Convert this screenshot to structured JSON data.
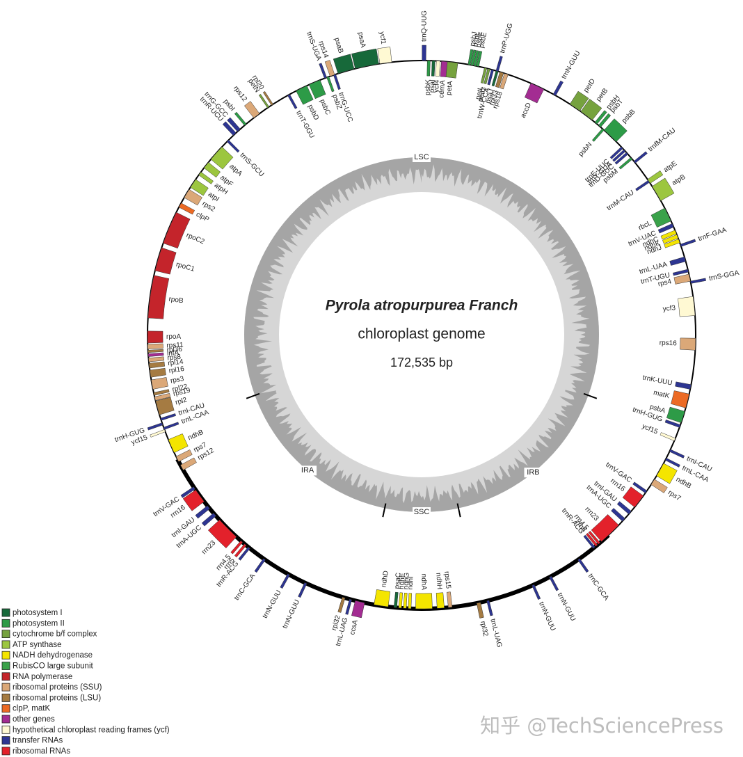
{
  "title": "Pyrola atropurpurea Franch",
  "subtitle": "chloroplast genome",
  "size": "172,535 bp",
  "regions": [
    "LSC",
    "IRB",
    "SSC",
    "IRA"
  ],
  "watermark": "知乎 @TechSciencePress",
  "legend": [
    {
      "label": "photosystem I",
      "color": "#17693a"
    },
    {
      "label": "photosystem II",
      "color": "#2d9b47"
    },
    {
      "label": "cytochrome b/f complex",
      "color": "#76a23e"
    },
    {
      "label": "ATP synthase",
      "color": "#9cc63f"
    },
    {
      "label": "NADH dehydrogenase",
      "color": "#f4e500"
    },
    {
      "label": "RubisCO large subunit",
      "color": "#3aa24a"
    },
    {
      "label": "RNA polymerase",
      "color": "#c4242b"
    },
    {
      "label": "ribosomal proteins (SSU)",
      "color": "#dba878"
    },
    {
      "label": "ribosomal proteins (LSU)",
      "color": "#a57b42"
    },
    {
      "label": "clpP, matK",
      "color": "#ec6a24"
    },
    {
      "label": "other genes",
      "color": "#a32c92"
    },
    {
      "label": "hypothetical chloroplast reading frames (ycf)",
      "color": "#fff9d3"
    },
    {
      "label": "transfer RNAs",
      "color": "#2d3592"
    },
    {
      "label": "ribosomal RNAs",
      "color": "#e3212b"
    }
  ],
  "genes": [
    {
      "label": "trnQ-UUG",
      "color": "#2d3592"
    },
    {
      "label": "psbK",
      "color": "#2d9b47"
    },
    {
      "label": "psaI",
      "color": "#17693a"
    },
    {
      "label": "ycf4",
      "color": "#fff9d3"
    },
    {
      "label": "cemA",
      "color": "#a32c92"
    },
    {
      "label": "petA",
      "color": "#76a23e"
    },
    {
      "label": "psbJ",
      "color": "#2d9b47"
    },
    {
      "label": "psbL",
      "color": "#2d9b47"
    },
    {
      "label": "psbF",
      "color": "#2d9b47"
    },
    {
      "label": "psbE",
      "color": "#2d9b47"
    },
    {
      "label": "petL",
      "color": "#76a23e"
    },
    {
      "label": "petG",
      "color": "#76a23e"
    },
    {
      "label": "trnW-CCA",
      "color": "#2d3592"
    },
    {
      "label": "trnP-UGG",
      "color": "#2d3592"
    },
    {
      "label": "psaJ",
      "color": "#17693a"
    },
    {
      "label": "rpl33",
      "color": "#a57b42"
    },
    {
      "label": "rps18",
      "color": "#dba878"
    },
    {
      "label": "accD",
      "color": "#a32c92"
    },
    {
      "label": "trnN-GUU",
      "color": "#2d3592"
    },
    {
      "label": "petD",
      "color": "#76a23e"
    },
    {
      "label": "petB",
      "color": "#76a23e"
    },
    {
      "label": "psbH",
      "color": "#2d9b47"
    },
    {
      "label": "psbT",
      "color": "#2d9b47"
    },
    {
      "label": "psbB",
      "color": "#2d9b47"
    },
    {
      "label": "psbN",
      "color": "#2d9b47"
    },
    {
      "label": "trnE-UUC",
      "color": "#2d3592"
    },
    {
      "label": "trnY-GUA",
      "color": "#2d3592"
    },
    {
      "label": "trnD-GUC",
      "color": "#2d3592"
    },
    {
      "label": "psbM",
      "color": "#2d9b47"
    },
    {
      "label": "trnfM-CAU",
      "color": "#2d3592"
    },
    {
      "label": "atpE",
      "color": "#9cc63f"
    },
    {
      "label": "atpB",
      "color": "#9cc63f"
    },
    {
      "label": "trnM-CAU",
      "color": "#2d3592"
    },
    {
      "label": "rbcL",
      "color": "#3aa24a"
    },
    {
      "label": "trnV-UAC",
      "color": "#2d3592"
    },
    {
      "label": "ndhC",
      "color": "#f4e500"
    },
    {
      "label": "ndhK",
      "color": "#f4e500"
    },
    {
      "label": "ndhJ",
      "color": "#f4e500"
    },
    {
      "label": "trnF-GAA",
      "color": "#2d3592"
    },
    {
      "label": "trnL-UAA",
      "color": "#2d3592"
    },
    {
      "label": "trnT-UGU",
      "color": "#2d3592"
    },
    {
      "label": "rps4",
      "color": "#dba878"
    },
    {
      "label": "trnS-GGA",
      "color": "#2d3592"
    },
    {
      "label": "ycf3",
      "color": "#fff9d3"
    },
    {
      "label": "rps16",
      "color": "#dba878"
    },
    {
      "label": "trnK-UUU",
      "color": "#2d3592"
    },
    {
      "label": "matK",
      "color": "#ec6a24"
    },
    {
      "label": "psbA",
      "color": "#2d9b47"
    },
    {
      "label": "trnH-GUG",
      "color": "#2d3592"
    },
    {
      "label": "ycf15",
      "color": "#fff9d3"
    },
    {
      "label": "trnI-CAU",
      "color": "#2d3592"
    },
    {
      "label": "trnL-CAA",
      "color": "#2d3592"
    },
    {
      "label": "ndhB",
      "color": "#f4e500"
    },
    {
      "label": "rps7",
      "color": "#dba878"
    },
    {
      "label": "trnV-GAC",
      "color": "#2d3592"
    },
    {
      "label": "rrn16",
      "color": "#e3212b"
    },
    {
      "label": "trnI-GAU",
      "color": "#2d3592"
    },
    {
      "label": "trnA-UGC",
      "color": "#2d3592"
    },
    {
      "label": "rrn23",
      "color": "#e3212b"
    },
    {
      "label": "rrn4.5",
      "color": "#e3212b"
    },
    {
      "label": "rrn5",
      "color": "#e3212b"
    },
    {
      "label": "trnR-ACG",
      "color": "#2d3592"
    },
    {
      "label": "trnC-GCA",
      "color": "#2d3592"
    },
    {
      "label": "trnN-GUU",
      "color": "#2d3592"
    },
    {
      "label": "trnN-GUU",
      "color": "#2d3592"
    },
    {
      "label": "trnL-UAG",
      "color": "#2d3592"
    },
    {
      "label": "rpl32",
      "color": "#a57b42"
    },
    {
      "label": "rps15",
      "color": "#dba878"
    },
    {
      "label": "ndhH",
      "color": "#f4e500"
    },
    {
      "label": "ndhA",
      "color": "#f4e500"
    },
    {
      "label": "ndhI",
      "color": "#f4e500"
    },
    {
      "label": "ndhG",
      "color": "#f4e500"
    },
    {
      "label": "ndhE",
      "color": "#f4e500"
    },
    {
      "label": "psaC",
      "color": "#17693a"
    },
    {
      "label": "ndhD",
      "color": "#f4e500"
    },
    {
      "label": "ccsA",
      "color": "#a32c92"
    },
    {
      "label": "trnL-UAG",
      "color": "#2d3592"
    },
    {
      "label": "rpl32",
      "color": "#a57b42"
    },
    {
      "label": "trnN-GUU",
      "color": "#2d3592"
    },
    {
      "label": "trnN-GUU",
      "color": "#2d3592"
    },
    {
      "label": "trnC-GCA",
      "color": "#2d3592"
    },
    {
      "label": "trnR-ACG",
      "color": "#2d3592"
    },
    {
      "label": "rrn5",
      "color": "#e3212b"
    },
    {
      "label": "rrn4.5",
      "color": "#e3212b"
    },
    {
      "label": "rrn23",
      "color": "#e3212b"
    },
    {
      "label": "trnA-UGC",
      "color": "#2d3592"
    },
    {
      "label": "trnI-GAU",
      "color": "#2d3592"
    },
    {
      "label": "rrn16",
      "color": "#e3212b"
    },
    {
      "label": "trnV-GAC",
      "color": "#2d3592"
    },
    {
      "label": "rps12",
      "color": "#dba878"
    },
    {
      "label": "rps7",
      "color": "#dba878"
    },
    {
      "label": "ndhB",
      "color": "#f4e500"
    },
    {
      "label": "ycf15",
      "color": "#fff9d3"
    },
    {
      "label": "trnH-GUG",
      "color": "#2d3592"
    },
    {
      "label": "trnL-CAA",
      "color": "#2d3592"
    },
    {
      "label": "trnI-CAU",
      "color": "#2d3592"
    },
    {
      "label": "rpl2",
      "color": "#a57b42"
    },
    {
      "label": "rps19",
      "color": "#dba878"
    },
    {
      "label": "rpl22",
      "color": "#a57b42"
    },
    {
      "label": "rps3",
      "color": "#dba878"
    },
    {
      "label": "rpl16",
      "color": "#a57b42"
    },
    {
      "label": "rpl14",
      "color": "#a57b42"
    },
    {
      "label": "rps8",
      "color": "#dba878"
    },
    {
      "label": "infA",
      "color": "#a32c92"
    },
    {
      "label": "rpl36",
      "color": "#a57b42"
    },
    {
      "label": "rps11",
      "color": "#dba878"
    },
    {
      "label": "rpoA",
      "color": "#c4242b"
    },
    {
      "label": "rpoB",
      "color": "#c4242b"
    },
    {
      "label": "rpoC1",
      "color": "#c4242b"
    },
    {
      "label": "rpoC2",
      "color": "#c4242b"
    },
    {
      "label": "clpP",
      "color": "#ec6a24"
    },
    {
      "label": "rps2",
      "color": "#dba878"
    },
    {
      "label": "atpI",
      "color": "#9cc63f"
    },
    {
      "label": "atpH",
      "color": "#9cc63f"
    },
    {
      "label": "atpF",
      "color": "#9cc63f"
    },
    {
      "label": "atpA",
      "color": "#9cc63f"
    },
    {
      "label": "trnS-GCU",
      "color": "#2d3592"
    },
    {
      "label": "trnR-UCU",
      "color": "#2d3592"
    },
    {
      "label": "trnG-GCC",
      "color": "#2d3592"
    },
    {
      "label": "psbI",
      "color": "#2d9b47"
    },
    {
      "label": "rps12",
      "color": "#dba878"
    },
    {
      "label": "petN",
      "color": "#76a23e"
    },
    {
      "label": "rpl20",
      "color": "#a57b42"
    },
    {
      "label": "trnT-GGU",
      "color": "#2d3592"
    },
    {
      "label": "psbD",
      "color": "#2d9b47"
    },
    {
      "label": "psbC",
      "color": "#2d9b47"
    },
    {
      "label": "psbZ",
      "color": "#2d9b47"
    },
    {
      "label": "trnG-UCC",
      "color": "#2d3592"
    },
    {
      "label": "trnS-UGA",
      "color": "#2d3592"
    },
    {
      "label": "rps14",
      "color": "#dba878"
    },
    {
      "label": "psaB",
      "color": "#17693a"
    },
    {
      "label": "psaA",
      "color": "#17693a"
    },
    {
      "label": "ycf1",
      "color": "#fff9d3"
    }
  ]
}
